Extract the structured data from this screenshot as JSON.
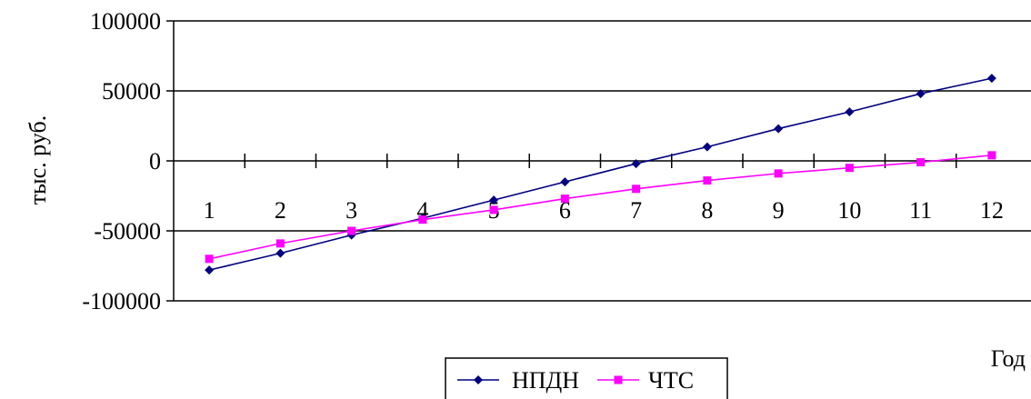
{
  "chart_data": {
    "type": "line",
    "title": "",
    "xlabel": "Год",
    "ylabel": "тыс. руб.",
    "categories": [
      "1",
      "2",
      "3",
      "4",
      "5",
      "6",
      "7",
      "8",
      "9",
      "10",
      "11",
      "12"
    ],
    "ylim": [
      -100000,
      100000
    ],
    "yticks": [
      100000,
      50000,
      0,
      -50000,
      -100000
    ],
    "ytick_labels": [
      "100000",
      "50000",
      "0",
      "-50000",
      "-100000"
    ],
    "grid": "horizontal",
    "legend_position": "bottom",
    "series": [
      {
        "name": "НПДН",
        "color": "#000080",
        "marker": "diamond",
        "values": [
          -78000,
          -66000,
          -53000,
          -41000,
          -28000,
          -15000,
          -2000,
          10000,
          23000,
          35000,
          48000,
          59000
        ]
      },
      {
        "name": "ЧТС",
        "color": "#ff00ff",
        "marker": "square",
        "values": [
          -70000,
          -59000,
          -50000,
          -42000,
          -35000,
          -27000,
          -20000,
          -14000,
          -9000,
          -5000,
          -1000,
          4000
        ]
      }
    ]
  }
}
